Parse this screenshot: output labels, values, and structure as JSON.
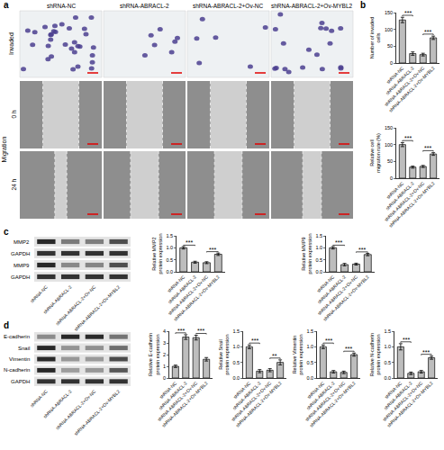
{
  "panels": [
    "a",
    "b",
    "c",
    "d"
  ],
  "images": {
    "columns": [
      "shRNA-NC",
      "shRNA-ABRACL-2",
      "shRNA-ABRACL-2+Ov-NC",
      "shRNA-ABRACL-2+Ov-MYBL2"
    ],
    "invaded": "Invaded",
    "migration": "Migration",
    "times": [
      "0 h",
      "24 h"
    ]
  },
  "blots": [
    {
      "rows": [
        "MMP2",
        "GAPDH",
        "MMP9",
        "GAPDH"
      ],
      "categories": [
        "shRNA-NC",
        "shRNA-ABRACL-2",
        "shRNA-ABRACL-2+Ov-NC",
        "shRNA-ABRACL-2+Ov-MYBL2"
      ]
    },
    {
      "rows": [
        "E-cadherin",
        "Snail",
        "Vimentin",
        "N-cadherin",
        "GAPDH"
      ],
      "categories": [
        "shRNA-NC",
        "shRNA-ABRACL-2",
        "shRNA-ABRACL-2+Ov-NC",
        "shRNA-ABRACL-2+Ov-MYBL2"
      ]
    }
  ],
  "chart_data": [
    {
      "type": "bar",
      "ylabel": "Number of invaded cells",
      "categories": [
        "shRNA-NC",
        "shRNA-ABRACL-2",
        "shRNA-ABRACL-2+Ov-NC",
        "shRNA-ABRACL-2+Ov-MYBL2"
      ],
      "values": [
        128,
        28,
        25,
        75
      ],
      "errors": [
        8,
        5,
        4,
        5
      ],
      "color": "#bdbdbd",
      "ylim": [
        0,
        150
      ],
      "yticks": [
        0,
        50,
        100,
        150
      ],
      "annotations": [
        {
          "between": [
            "shRNA-NC",
            "shRNA-ABRACL-2"
          ],
          "text": "***"
        },
        {
          "between": [
            "shRNA-ABRACL-2+Ov-NC",
            "shRNA-ABRACL-2+Ov-MYBL2"
          ],
          "text": "***"
        }
      ]
    },
    {
      "type": "bar",
      "ylabel": "Relative cell migration rate (%)",
      "categories": [
        "shRNA-NC",
        "shRNA-ABRACL-2",
        "shRNA-ABRACL-2+Ov-NC",
        "shRNA-ABRACL-2+Ov-MYBL2"
      ],
      "values": [
        100,
        33,
        35,
        72
      ],
      "errors": [
        6,
        3,
        3,
        4
      ],
      "color": "#bdbdbd",
      "ylim": [
        0,
        150
      ],
      "yticks": [
        0,
        50,
        100,
        150
      ],
      "annotations": [
        {
          "between": [
            "shRNA-NC",
            "shRNA-ABRACL-2"
          ],
          "text": "***"
        },
        {
          "between": [
            "shRNA-ABRACL-2+Ov-NC",
            "shRNA-ABRACL-2+Ov-MYBL2"
          ],
          "text": "***"
        }
      ]
    },
    {
      "type": "bar",
      "ylabel": "Relative MMP2 protein expression",
      "categories": [
        "shRNA-NC",
        "shRNA-ABRACL-2",
        "shRNA-ABRACL-2+Ov-NC",
        "shRNA-ABRACL-2+Ov-MYBL2"
      ],
      "values": [
        1.0,
        0.4,
        0.38,
        0.73
      ],
      "errors": [
        0.05,
        0.04,
        0.04,
        0.05
      ],
      "color": "#bdbdbd",
      "ylim": [
        0,
        1.5
      ],
      "yticks": [
        {
          "value": 0,
          "label": "0.0"
        },
        0.5,
        {
          "value": 1,
          "label": "1.0"
        },
        1.5
      ],
      "annotations": [
        {
          "between": [
            "shRNA-NC",
            "shRNA-ABRACL-2"
          ],
          "text": "***"
        },
        {
          "between": [
            "shRNA-ABRACL-2+Ov-NC",
            "shRNA-ABRACL-2+Ov-MYBL2"
          ],
          "text": "***"
        }
      ]
    },
    {
      "type": "bar",
      "ylabel": "Relative MMP9 protein expression",
      "categories": [
        "shRNA-NC",
        "shRNA-ABRACL-2",
        "shRNA-ABRACL-2+Ov-NC",
        "shRNA-ABRACL-2+Ov-MYBL2"
      ],
      "values": [
        1.0,
        0.3,
        0.32,
        0.72
      ],
      "errors": [
        0.05,
        0.05,
        0.04,
        0.05
      ],
      "color": "#bdbdbd",
      "ylim": [
        0,
        1.5
      ],
      "yticks": [
        {
          "value": 0,
          "label": "0.0"
        },
        0.5,
        {
          "value": 1,
          "label": "1.0"
        },
        1.5
      ],
      "annotations": [
        {
          "between": [
            "shRNA-NC",
            "shRNA-ABRACL-2"
          ],
          "text": "***"
        },
        {
          "between": [
            "shRNA-ABRACL-2+Ov-NC",
            "shRNA-ABRACL-2+Ov-MYBL2"
          ],
          "text": "***"
        }
      ]
    },
    {
      "type": "bar",
      "ylabel": "Relative E-cadherin protein expression",
      "categories": [
        "shRNA-NC",
        "shRNA-ABRACL-2",
        "shRNA-ABRACL-2+Ov-NC",
        "shRNA-ABRACL-2+Ov-MYBL2"
      ],
      "values": [
        1.0,
        3.5,
        3.45,
        1.6
      ],
      "errors": [
        0.1,
        0.2,
        0.2,
        0.15
      ],
      "color": "#bdbdbd",
      "ylim": [
        0,
        4
      ],
      "yticks": [
        0,
        1,
        2,
        3,
        4
      ],
      "annotations": [
        {
          "between": [
            "shRNA-NC",
            "shRNA-ABRACL-2"
          ],
          "text": "***"
        },
        {
          "between": [
            "shRNA-ABRACL-2+Ov-NC",
            "shRNA-ABRACL-2+Ov-MYBL2"
          ],
          "text": "***"
        }
      ]
    },
    {
      "type": "bar",
      "ylabel": "Relative Snail protein expression",
      "categories": [
        "shRNA-NC",
        "shRNA-ABRACL-2",
        "shRNA-ABRACL-2+Ov-NC",
        "shRNA-ABRACL-2+Ov-MYBL2"
      ],
      "values": [
        1.0,
        0.22,
        0.25,
        0.5
      ],
      "errors": [
        0.06,
        0.05,
        0.05,
        0.08
      ],
      "color": "#bdbdbd",
      "ylim": [
        0,
        1.5
      ],
      "yticks": [
        {
          "value": 0,
          "label": "0.0"
        },
        0.5,
        {
          "value": 1,
          "label": "1.0"
        },
        1.5
      ],
      "annotations": [
        {
          "between": [
            "shRNA-NC",
            "shRNA-ABRACL-2"
          ],
          "text": "***"
        },
        {
          "between": [
            "shRNA-ABRACL-2+Ov-NC",
            "shRNA-ABRACL-2+Ov-MYBL2"
          ],
          "text": "**"
        }
      ]
    },
    {
      "type": "bar",
      "ylabel": "Relative Vimentin protein expression",
      "categories": [
        "shRNA-NC",
        "shRNA-ABRACL-2",
        "shRNA-ABRACL-2+Ov-NC",
        "shRNA-ABRACL-2+Ov-MYBL2"
      ],
      "values": [
        1.0,
        0.2,
        0.18,
        0.75
      ],
      "errors": [
        0.06,
        0.04,
        0.04,
        0.05
      ],
      "color": "#bdbdbd",
      "ylim": [
        0,
        1.5
      ],
      "yticks": [
        {
          "value": 0,
          "label": "0.0"
        },
        0.5,
        {
          "value": 1,
          "label": "1.0"
        },
        1.5
      ],
      "annotations": [
        {
          "between": [
            "shRNA-NC",
            "shRNA-ABRACL-2"
          ],
          "text": "***"
        },
        {
          "between": [
            "shRNA-ABRACL-2+Ov-NC",
            "shRNA-ABRACL-2+Ov-MYBL2"
          ],
          "text": "***"
        }
      ]
    },
    {
      "type": "bar",
      "ylabel": "Relative N-cadherin protein expression",
      "categories": [
        "shRNA-NC",
        "shRNA-ABRACL-2",
        "shRNA-ABRACL-2+Ov-NC",
        "shRNA-ABRACL-2+Ov-MYBL2"
      ],
      "values": [
        1.0,
        0.15,
        0.2,
        0.65
      ],
      "errors": [
        0.1,
        0.04,
        0.04,
        0.05
      ],
      "color": "#bdbdbd",
      "ylim": [
        0,
        1.5
      ],
      "yticks": [
        {
          "value": 0,
          "label": "0.0"
        },
        0.5,
        {
          "value": 1,
          "label": "1.0"
        },
        1.5
      ],
      "annotations": [
        {
          "between": [
            "shRNA-NC",
            "shRNA-ABRACL-2"
          ],
          "text": "***"
        },
        {
          "between": [
            "shRNA-ABRACL-2+Ov-NC",
            "shRNA-ABRACL-2+Ov-MYBL2"
          ],
          "text": "***"
        }
      ]
    }
  ]
}
